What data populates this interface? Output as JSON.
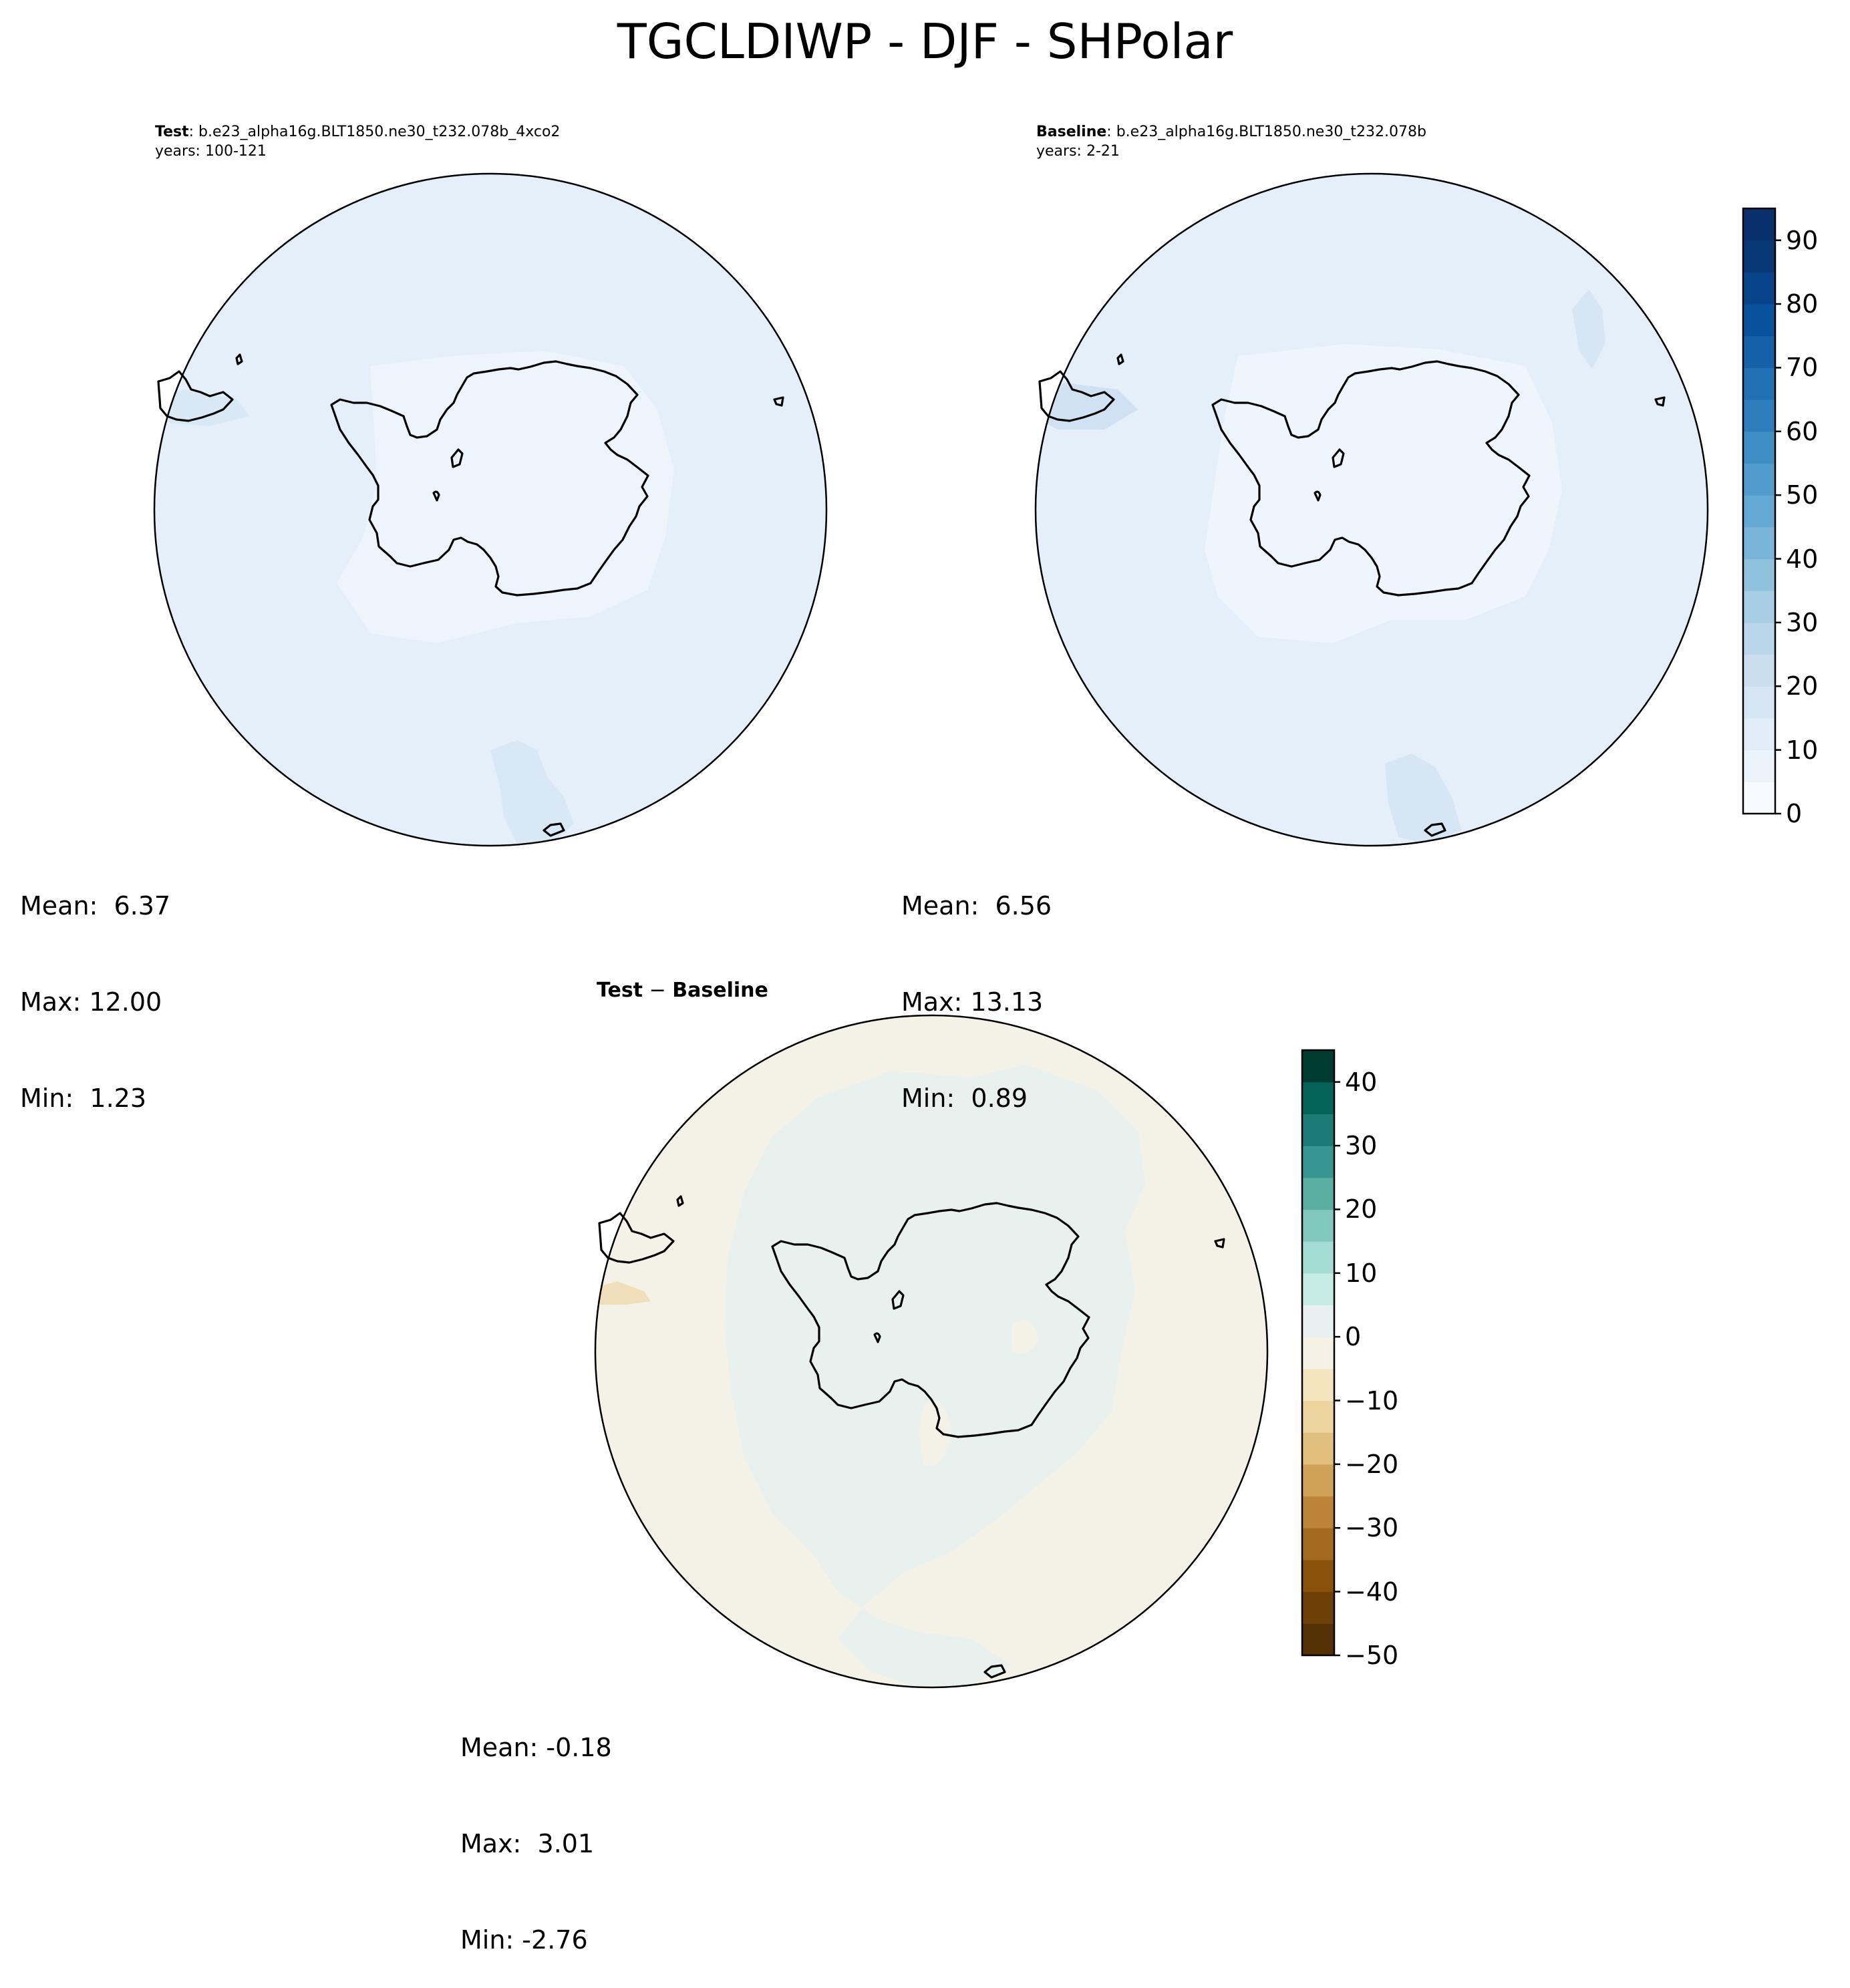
{
  "figure": {
    "title": "TGCLDIWP - DJF - SHPolar"
  },
  "panels": {
    "test": {
      "label": "Test",
      "case": ": b.e23_alpha16g.BLT1850.ne30_t232.078b_4xco2",
      "years": "years: 100-121",
      "stats": {
        "mean": "Mean:  6.37",
        "max": "Max: 12.00",
        "min": "Min:  1.23"
      }
    },
    "baseline": {
      "label": "Baseline",
      "case": ": b.e23_alpha16g.BLT1850.ne30_t232.078b",
      "years": "years: 2-21",
      "stats": {
        "mean": "Mean:  6.56",
        "max": "Max: 13.13",
        "min": "Min:  0.89"
      }
    },
    "diff": {
      "title_a": "Test",
      "title_sep": " − ",
      "title_b": "Baseline",
      "stats": {
        "mean": "Mean: -0.18",
        "max": "Max:  3.01",
        "min": "Min: -2.76"
      }
    }
  },
  "chart_data": [
    {
      "type": "heatmap",
      "projection": "south-polar-stereographic",
      "panel": "test",
      "field_level_range": [
        0,
        10
      ],
      "stats": {
        "mean": 6.37,
        "max": 12.0,
        "min": 1.23
      }
    },
    {
      "type": "heatmap",
      "projection": "south-polar-stereographic",
      "panel": "baseline",
      "field_level_range": [
        0,
        15
      ],
      "stats": {
        "mean": 6.56,
        "max": 13.13,
        "min": 0.89
      }
    },
    {
      "type": "heatmap",
      "projection": "south-polar-stereographic",
      "panel": "diff",
      "field_level_range": [
        -5,
        5
      ],
      "stats": {
        "mean": -0.18,
        "max": 3.01,
        "min": -2.76
      }
    }
  ],
  "colorbars": {
    "main": {
      "range": [
        0,
        95
      ],
      "step": 5,
      "ticks": [
        0,
        10,
        20,
        30,
        40,
        50,
        60,
        70,
        80,
        90
      ],
      "tick_labels": [
        "0",
        "10",
        "20",
        "30",
        "40",
        "50",
        "60",
        "70",
        "80",
        "90"
      ],
      "colors": [
        "#f7fbff",
        "#ebf3fb",
        "#e1edf8",
        "#d6e6f4",
        "#cadef0",
        "#bad6eb",
        "#a6cee4",
        "#90c2de",
        "#79b5d9",
        "#64a9d3",
        "#519ccc",
        "#3f8fc5",
        "#2e7ebc",
        "#2070b4",
        "#1461a8",
        "#08519c",
        "#084489",
        "#083776",
        "#08306b"
      ]
    },
    "diff": {
      "range": [
        -50,
        45
      ],
      "step": 5,
      "ticks": [
        -50,
        -40,
        -30,
        -20,
        -10,
        0,
        10,
        20,
        30,
        40
      ],
      "tick_labels": [
        "−50",
        "−40",
        "−30",
        "−20",
        "−10",
        "0",
        "10",
        "20",
        "30",
        "40"
      ],
      "colors": [
        "#543005",
        "#6f3f08",
        "#8a510b",
        "#a46a1f",
        "#bd8336",
        "#d0a257",
        "#e0c07c",
        "#ecd49c",
        "#f5e5bf",
        "#f5f2e5",
        "#e8f1ef",
        "#c7ebe5",
        "#a4ddd3",
        "#80c8bb",
        "#5aaea2",
        "#35978f",
        "#1a7c74",
        "#05645a",
        "#003c30"
      ]
    }
  },
  "map_colors": {
    "test_ocean": "#e4eff9",
    "test_inner": "#edf4fb",
    "test_patch": "#d9e8f5",
    "base_ocean": "#e4eff9",
    "base_inner": "#eff5fc",
    "base_patch": "#d7e6f4",
    "diff_outer": "#f4f2e6",
    "diff_inner": "#e9f1ef",
    "diff_warm": "#f1dfbb"
  }
}
